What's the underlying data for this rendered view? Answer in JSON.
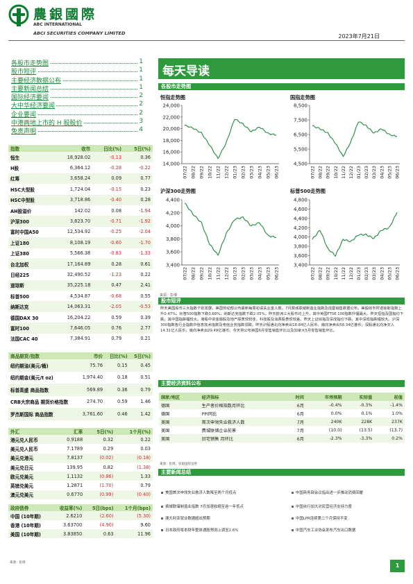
{
  "header": {
    "brand_cn": "農銀國際",
    "brand_en1": "ABC INTERNATIONAL",
    "brand_en2": "ABCI SECURITIES COMPANY LIMITED",
    "date": "2023年7月21日"
  },
  "toc": [
    {
      "label": "各股市走势图",
      "page": "1"
    },
    {
      "label": "股市短评",
      "page": "1"
    },
    {
      "label": "主要经济数据公布",
      "page": "1"
    },
    {
      "label": "主要新闻总结",
      "page": "1"
    },
    {
      "label": "国际经济要闻",
      "page": "2"
    },
    {
      "label": "大中华经济要闻",
      "page": "2"
    },
    {
      "label": "企业要闻",
      "page": "2"
    },
    {
      "label": "中港两地上市的 H 股股价",
      "page": "3"
    },
    {
      "label": "免责声明",
      "page": "4"
    }
  ],
  "indices": {
    "headers": [
      "指数",
      "收市",
      "日比(%)",
      "5日(%)"
    ],
    "rows": [
      [
        "恒生",
        "18,928.02",
        "-0.13",
        "0.36"
      ],
      [
        "H股",
        "6,364.12",
        "-0.28",
        "-0.22"
      ],
      [
        "红筹",
        "3,658.24",
        "0.09",
        "0.77"
      ],
      [
        "HSC大型股",
        "1,724.04",
        "-0.15",
        "0.23"
      ],
      [
        "HSC中型股",
        "3,718.86",
        "-0.40",
        "0.28"
      ],
      [
        "AH股溢价",
        "142.02",
        "0.08",
        "-1.94"
      ],
      [
        "沪深300",
        "3,823.70",
        "-0.71",
        "-1.92"
      ],
      [
        "富时中国A50",
        "12,534.92",
        "-0.25",
        "-2.04"
      ],
      [
        "上证180",
        "8,108.19",
        "-0.60",
        "-1.70"
      ],
      [
        "上证380",
        "5,566.38",
        "-0.83",
        "-1.33"
      ],
      [
        "台北加权",
        "17,164.89",
        "0.28",
        "0.61"
      ],
      [
        "日经225",
        "32,490.52",
        "-1.23",
        "0.22"
      ],
      [
        "道琼斯",
        "35,225.18",
        "0.47",
        "2.41"
      ],
      [
        "标普500",
        "4,534.87",
        "-0.68",
        "0.55"
      ],
      [
        "纳斯达克",
        "14,063.31",
        "-2.05",
        "-0.53"
      ],
      [
        "德国DAX 30",
        "16,204.22",
        "0.59",
        "0.39"
      ],
      [
        "富时100",
        "7,646.05",
        "0.76",
        "2.77"
      ],
      [
        "法国CAC 40",
        "7,384.91",
        "0.79",
        "0.21"
      ]
    ]
  },
  "commodities": {
    "headers": [
      "商品期货/指数",
      "市价",
      "日比(%)",
      "5日(%)"
    ],
    "rows": [
      [
        "纽约期油(美元/桶)",
        "75.76",
        "0.15",
        "0.45"
      ],
      [
        "纽约期金(美元/t oz)",
        "1,974.40",
        "0.18",
        "0.51"
      ],
      [
        "标普高盛 商品指数",
        "569.89",
        "0.36",
        "0.79"
      ],
      [
        "CRB大宗商品 期货价格指数",
        "274.70",
        "0.59",
        "1.46"
      ],
      [
        "罗杰斯国际 商品指数",
        "3,761.60",
        "0.46",
        "1.42"
      ]
    ]
  },
  "fx": {
    "headers": [
      "外汇",
      "汇率",
      "5日(%)",
      "1个月(%)"
    ],
    "rows": [
      [
        "港元兑人民币",
        "0.9188",
        "0.32",
        "0.22"
      ],
      [
        "美元兑人民币",
        "7.1789",
        "0.29",
        "0.03"
      ],
      [
        "美元兑港元",
        "7.8137",
        "(0.02)",
        "(0.18)"
      ],
      [
        "美元兑日元",
        "139.95",
        "0.82",
        "(1.38)"
      ],
      [
        "欧元兑美元",
        "1.1132",
        "(0.86)",
        "1.33"
      ],
      [
        "英镑兑美元",
        "1.2871",
        "(1.70)",
        "0.79"
      ],
      [
        "澳元兑美元",
        "0.6770",
        "(0.99)",
        "(0.40)"
      ]
    ]
  },
  "bonds": {
    "headers": [
      "政府债券",
      "收益率(%)",
      "5日(bps)",
      "1个月(bps)"
    ],
    "rows": [
      [
        "中国 (10年期)",
        "2.6210",
        "(2.60)",
        "(5.30)"
      ],
      [
        "香港 (10年期)",
        "3.63700",
        "(4.90)",
        "9.60"
      ],
      [
        "美国 (10年期)",
        "3.83850",
        "0.63",
        "11.96"
      ]
    ]
  },
  "title": "每天导读",
  "section_charts": "各股市走势图",
  "charts": [
    {
      "title": "恒指走势图",
      "type": "line",
      "yticks": [
        "24,000",
        "22,000",
        "20,000",
        "18,000",
        "16,000",
        "14,000"
      ],
      "ylim": [
        14000,
        24000
      ],
      "x": [
        "07/22",
        "08/22",
        "09/22",
        "10/22",
        "11/22",
        "12/22",
        "01/23",
        "02/23",
        "03/23",
        "04/23",
        "05/23",
        "06/23"
      ],
      "values": [
        20600,
        20100,
        19300,
        17200,
        14900,
        17600,
        21700,
        20800,
        19500,
        20300,
        19200,
        18900
      ]
    },
    {
      "title": "国指走势图",
      "type": "line",
      "yticks": [
        "8,500",
        "7,500",
        "6,500",
        "5,500",
        "4,500"
      ],
      "ylim": [
        4500,
        8500
      ],
      "x": [
        "07/22",
        "08/22",
        "09/22",
        "10/22",
        "11/22",
        "12/22",
        "01/23",
        "02/23",
        "03/23",
        "04/23",
        "05/23",
        "06/23"
      ],
      "values": [
        7100,
        6900,
        6600,
        5900,
        5000,
        6000,
        7400,
        7100,
        6600,
        6900,
        6500,
        6360
      ]
    },
    {
      "title": "沪深300走势图",
      "type": "line",
      "yticks": [
        "4,400",
        "4,200",
        "4,000",
        "3,800",
        "3,600",
        "3,400"
      ],
      "ylim": [
        3400,
        4400
      ],
      "x": [
        "07/22",
        "08/22",
        "09/22",
        "10/22",
        "11/22",
        "12/22",
        "01/23",
        "02/23",
        "03/23",
        "04/23",
        "05/23",
        "06/23"
      ],
      "values": [
        4350,
        4180,
        4050,
        3720,
        3550,
        3880,
        4100,
        4130,
        4000,
        4050,
        3850,
        3820
      ]
    },
    {
      "title": "标普500走势图",
      "type": "line",
      "yticks": [
        "4,800",
        "4,600",
        "4,400",
        "4,200",
        "4,000",
        "3,800",
        "3,600",
        "3,400"
      ],
      "ylim": [
        3400,
        4800
      ],
      "x": [
        "07/22",
        "08/22",
        "09/22",
        "10/22",
        "11/22",
        "12/22",
        "01/23",
        "02/23",
        "03/23",
        "04/23",
        "05/23",
        "06/23"
      ],
      "values": [
        3950,
        4150,
        3750,
        3600,
        3950,
        3900,
        4050,
        4050,
        3970,
        4150,
        4200,
        4530
      ]
    }
  ],
  "chart_source": "来源：彭博",
  "section_market": "股市短评",
  "market_text": "昨天美国股市三大指数个别发展，美国劳动部公布最新每周初请失业金人数，7月费城联储制造业指数及成屋销售数据公布。美股收市时道琼斯指数上升0.47%，标普500指数下跌0.68%，纳斯达克指数下跌2.05%。昨天欧洲三大股市均上升，其中英国FTSE 100指数升幅最大。昨天恒指及国指均下跌，其中国指跌幅较大。港股中资金融股及地产股表现较佳，科技股及消费股表现较差。昨天上证综指及深成指均下跌，其中深成指跌幅较大。沪深300指数各行业指数中信息技术指数及电信业务指数领跌。昨天沪股通北向净卖出18.84亿人民币，南向净卖出58.34亿港币；深股通北向净买入14.31亿人民币，南向净卖出29.49亿港币。今天将公布英国6月零售销售环比以及加拿大5月零售销售环比。",
  "section_econ": "主要经济资料公布",
  "econ": {
    "headers": [
      "国家/地区",
      "经济指标",
      "时间",
      "市场预期",
      "实际值",
      "前值"
    ],
    "rows": [
      [
        "德国",
        "生产者价格指数月环比",
        "6月",
        "-0.4%",
        "-0.3%",
        "-1.4%"
      ],
      [
        "德国",
        "PPI同比",
        "6月",
        "0.0%",
        "0.1%",
        "1.0%"
      ],
      [
        "美国",
        "首次申领失业救济人数",
        "7月",
        "240K",
        "228K",
        "237K"
      ],
      [
        "美国",
        "费城联储企业前景",
        "7月",
        "(10.0)",
        "(13.5)",
        "(13.7)"
      ],
      [
        "美国",
        "旧宅销售 月环比",
        "6月",
        "-2.3%",
        "-3.3%",
        "0.2%"
      ]
    ]
  },
  "econ_source": "来源：彭博，农银国际证券",
  "section_news": "主要新闻总结",
  "news_left": [
    "美国首次申领失业救济人数降至两个月低点",
    "费城联储制造业指数 7月加速收缩至逾一年低点",
    "澳大利亚就业数据超出预期",
    "日本政府将本财年整体通胀预测上调至2.6%"
  ],
  "news_right": [
    "中国商务部会议指出进一步推动消费回暖",
    "中国央行加大对民营经济支持力度",
    "中国LPR连续第二个月保持不变",
    "中国汽车工业协会发布汽车出口数据"
  ],
  "bottom_source": "来源：彭博",
  "page": "1",
  "colors": {
    "brand_green": "#2e9a3d",
    "negative_red": "#d8252b"
  }
}
